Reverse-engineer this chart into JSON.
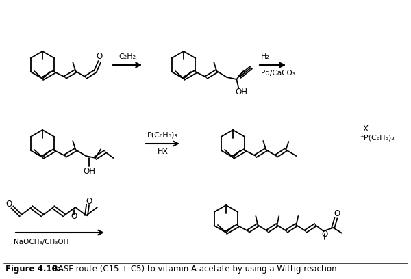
{
  "figure_caption_bold": "Figure 4.10:",
  "figure_caption_rest": " BASF route (C15 + C5) to vitamin A acetate by using a Wittig reaction.",
  "bg_color": "#ffffff",
  "text_color": "#000000",
  "figsize": [
    6.0,
    4.08
  ],
  "dpi": 100,
  "arrow1_label": "C₂H₂",
  "arrow2_label_line1": "H₂",
  "arrow2_label_line2": "Pd/CaCO₃",
  "arrow3_label_line1": "P(C₆H₅)₃",
  "arrow3_label_line2": "HX",
  "arrow4_label": "NaOCH₃/CH₃OH",
  "wittig_x_label": "X⁻",
  "wittig_p_label": "⁺P(C₆H₅)₃"
}
